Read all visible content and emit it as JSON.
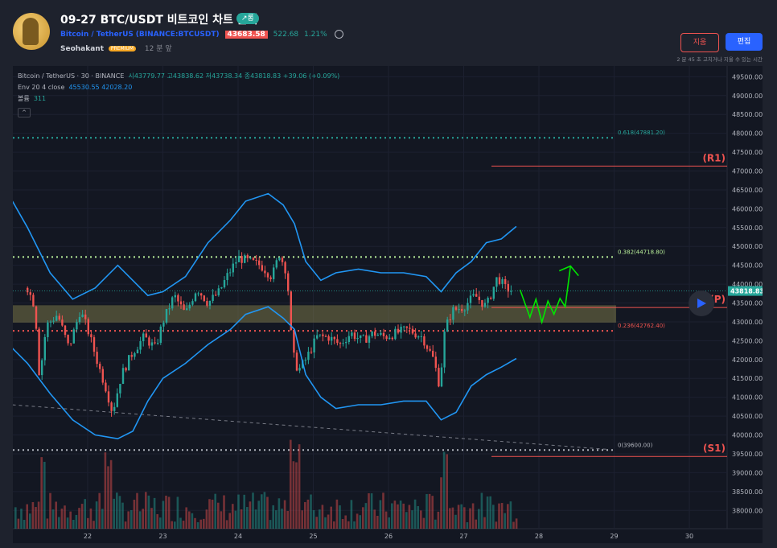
{
  "header": {
    "title": "09-27 BTC/USDT 비트코인 차트 분석",
    "direction_badge": "↗롱",
    "symbol_name": "Bitcoin / TetherUS",
    "symbol_exchange": "BINANCE:BTCUSDT",
    "price": "43683.58",
    "change": "522.68",
    "change_pct": "1.21%",
    "author": "Seohakant",
    "author_badge": "PREMIUM",
    "published": "12 분 앞",
    "delete_label": "지움",
    "edit_label": "편집",
    "note": "2 분 45 초 고치거나 지울 수 있는 시간"
  },
  "legend": {
    "line1": "Bitcoin / TetherUS · 30 · BINANCE",
    "ohlc": "시43779.77 고43838.62 저43738.34 종43818.83 +39.06 (+0.09%)",
    "env_label": "Env 20 4 close",
    "env_upper": "45530.55",
    "env_lower": "42028.20",
    "vol_label": "볼륨",
    "vol_value": "311"
  },
  "colors": {
    "background": "#131722",
    "up": "#26a69a",
    "down": "#ef5350",
    "envelope": "#2196f3",
    "fib_green": "#26a69a",
    "fib_lightgreen": "#b9f09a",
    "fib_red": "#ef5350",
    "zone": "#8d8a4f",
    "projection": "#00e600"
  },
  "chart_data": {
    "type": "candlestick",
    "symbol": "Bitcoin / TetherUS",
    "interval": "30",
    "exchange": "BINANCE",
    "x_ticks": [
      "22",
      "23",
      "24",
      "25",
      "26",
      "27",
      "28",
      "29",
      "30"
    ],
    "y_ticks": [
      "49500.00",
      "49000.00",
      "48500.00",
      "48000.00",
      "47500.00",
      "47000.00",
      "46500.00",
      "46000.00",
      "45500.00",
      "45000.00",
      "44500.00",
      "44000.00",
      "43500.00",
      "43000.00",
      "42500.00",
      "42000.00",
      "41500.00",
      "41000.00",
      "40500.00",
      "40000.00",
      "39500.00",
      "39000.00",
      "38500.00",
      "38000.00"
    ],
    "y_range": [
      37600,
      49700
    ],
    "current_price_label": "43818.83",
    "current_price": 43818.83,
    "price_path": [
      {
        "d": 21.2,
        "p": 43900
      },
      {
        "d": 21.3,
        "p": 43400
      },
      {
        "d": 21.36,
        "p": 41500
      },
      {
        "d": 21.45,
        "p": 42900
      },
      {
        "d": 21.6,
        "p": 43200
      },
      {
        "d": 21.75,
        "p": 42300
      },
      {
        "d": 21.9,
        "p": 43300
      },
      {
        "d": 22.0,
        "p": 42800
      },
      {
        "d": 22.15,
        "p": 41800
      },
      {
        "d": 22.25,
        "p": 41200
      },
      {
        "d": 22.33,
        "p": 40600
      },
      {
        "d": 22.45,
        "p": 41600
      },
      {
        "d": 22.6,
        "p": 42200
      },
      {
        "d": 22.75,
        "p": 42600
      },
      {
        "d": 22.9,
        "p": 42300
      },
      {
        "d": 23.0,
        "p": 43000
      },
      {
        "d": 23.15,
        "p": 43700
      },
      {
        "d": 23.3,
        "p": 43200
      },
      {
        "d": 23.45,
        "p": 43900
      },
      {
        "d": 23.6,
        "p": 43500
      },
      {
        "d": 23.75,
        "p": 43800
      },
      {
        "d": 23.85,
        "p": 44200
      },
      {
        "d": 24.0,
        "p": 44700
      },
      {
        "d": 24.15,
        "p": 44600
      },
      {
        "d": 24.3,
        "p": 44500
      },
      {
        "d": 24.45,
        "p": 44200
      },
      {
        "d": 24.55,
        "p": 44800
      },
      {
        "d": 24.65,
        "p": 44300
      },
      {
        "d": 24.72,
        "p": 42200
      },
      {
        "d": 24.8,
        "p": 41700
      },
      {
        "d": 24.9,
        "p": 42000
      },
      {
        "d": 25.05,
        "p": 42600
      },
      {
        "d": 25.2,
        "p": 42600
      },
      {
        "d": 25.35,
        "p": 42400
      },
      {
        "d": 25.5,
        "p": 42700
      },
      {
        "d": 25.65,
        "p": 42500
      },
      {
        "d": 25.8,
        "p": 42700
      },
      {
        "d": 25.95,
        "p": 42600
      },
      {
        "d": 26.1,
        "p": 42700
      },
      {
        "d": 26.25,
        "p": 42800
      },
      {
        "d": 26.45,
        "p": 42600
      },
      {
        "d": 26.6,
        "p": 42000
      },
      {
        "d": 26.68,
        "p": 41300
      },
      {
        "d": 26.75,
        "p": 42800
      },
      {
        "d": 26.85,
        "p": 43300
      },
      {
        "d": 27.0,
        "p": 43400
      },
      {
        "d": 27.15,
        "p": 43700
      },
      {
        "d": 27.3,
        "p": 43400
      },
      {
        "d": 27.45,
        "p": 44200
      },
      {
        "d": 27.55,
        "p": 43900
      },
      {
        "d": 27.65,
        "p": 43818.83
      }
    ],
    "envelope": {
      "label": "Env 20 4 close",
      "upper_last": 45530.55,
      "lower_last": 42028.2,
      "upper": [
        [
          21.0,
          46200
        ],
        [
          21.2,
          45500
        ],
        [
          21.5,
          44300
        ],
        [
          21.8,
          43600
        ],
        [
          22.1,
          43900
        ],
        [
          22.4,
          44500
        ],
        [
          22.6,
          44100
        ],
        [
          22.8,
          43700
        ],
        [
          23.0,
          43800
        ],
        [
          23.3,
          44200
        ],
        [
          23.6,
          45100
        ],
        [
          23.9,
          45700
        ],
        [
          24.1,
          46200
        ],
        [
          24.4,
          46400
        ],
        [
          24.6,
          46100
        ],
        [
          24.75,
          45600
        ],
        [
          24.9,
          44600
        ],
        [
          25.1,
          44100
        ],
        [
          25.3,
          44300
        ],
        [
          25.6,
          44400
        ],
        [
          25.9,
          44300
        ],
        [
          26.2,
          44300
        ],
        [
          26.5,
          44200
        ],
        [
          26.7,
          43800
        ],
        [
          26.9,
          44300
        ],
        [
          27.1,
          44600
        ],
        [
          27.3,
          45100
        ],
        [
          27.5,
          45200
        ],
        [
          27.7,
          45530
        ]
      ],
      "lower": [
        [
          21.0,
          42300
        ],
        [
          21.2,
          41900
        ],
        [
          21.5,
          41100
        ],
        [
          21.8,
          40400
        ],
        [
          22.1,
          40000
        ],
        [
          22.4,
          39900
        ],
        [
          22.6,
          40100
        ],
        [
          22.8,
          40900
        ],
        [
          23.0,
          41500
        ],
        [
          23.3,
          41900
        ],
        [
          23.6,
          42400
        ],
        [
          23.9,
          42800
        ],
        [
          24.1,
          43200
        ],
        [
          24.4,
          43400
        ],
        [
          24.6,
          43100
        ],
        [
          24.75,
          42800
        ],
        [
          24.9,
          41600
        ],
        [
          25.1,
          41000
        ],
        [
          25.3,
          40700
        ],
        [
          25.6,
          40800
        ],
        [
          25.9,
          40800
        ],
        [
          26.2,
          40900
        ],
        [
          26.5,
          40900
        ],
        [
          26.7,
          40400
        ],
        [
          26.9,
          40600
        ],
        [
          27.1,
          41300
        ],
        [
          27.3,
          41600
        ],
        [
          27.5,
          41800
        ],
        [
          27.7,
          42028
        ]
      ]
    },
    "fib_levels": [
      {
        "label": "0.618(47881.20)",
        "price": 47881.2,
        "color": "#26a69a"
      },
      {
        "label": "0.382(44718.80)",
        "price": 44718.8,
        "color": "#b9f09a"
      },
      {
        "label": "0.236(42762.40)",
        "price": 42762.4,
        "color": "#ef5350"
      },
      {
        "label": "0(39600.00)",
        "price": 39600.0,
        "color": "#b2b5be"
      }
    ],
    "pivot_levels": [
      {
        "label": "(R1)",
        "price": 47130
      },
      {
        "label": "(P)",
        "price": 43380
      },
      {
        "label": "(S1)",
        "price": 39430
      }
    ],
    "zone": {
      "low": 42980,
      "high": 43440
    },
    "trendline": {
      "start": [
        21.0,
        40800
      ],
      "end": [
        28.9,
        39620
      ]
    },
    "projection": [
      [
        27.75,
        43850
      ],
      [
        27.88,
        43120
      ],
      [
        27.96,
        43600
      ],
      [
        28.04,
        42990
      ],
      [
        28.12,
        43550
      ],
      [
        28.2,
        43200
      ],
      [
        28.28,
        43620
      ],
      [
        28.35,
        43400
      ],
      [
        28.42,
        44480
      ]
    ]
  }
}
